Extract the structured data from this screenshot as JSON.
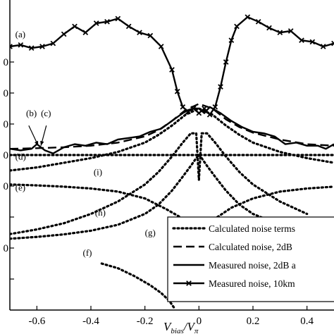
{
  "chart_data": {
    "type": "line",
    "xlabel": {
      "main": "V",
      "sub1": "bias",
      "slash": "/V",
      "sub2": "π"
    },
    "xlim": [
      -0.7,
      0.5
    ],
    "ylim": [
      -1,
      9
    ],
    "xticks": [
      -0.6,
      -0.4,
      -0.2,
      0,
      0.2,
      0.4
    ],
    "xtick_labels": [
      "-0.6",
      "-0.4",
      "-0.2",
      "0",
      "0.2",
      "0.4"
    ],
    "yticks": [
      0,
      1,
      2,
      3,
      4,
      5,
      6,
      7
    ],
    "ytick_labels": [
      "",
      "0",
      "",
      "0",
      "0",
      "0",
      "0",
      "0"
    ],
    "curve_labels": [
      {
        "id": "a",
        "text": "(a)",
        "x": -0.68,
        "y": 7.8
      },
      {
        "id": "b",
        "text": "(b)",
        "x": -0.64,
        "y": 5.25
      },
      {
        "id": "c",
        "text": "(c)",
        "x": -0.585,
        "y": 5.25
      },
      {
        "id": "d",
        "text": "(d)",
        "x": -0.68,
        "y": 3.85
      },
      {
        "id": "e",
        "text": "(e)",
        "x": -0.68,
        "y": 2.85
      },
      {
        "id": "f",
        "text": "(f)",
        "x": -0.43,
        "y": 0.75
      },
      {
        "id": "g",
        "text": "(g)",
        "x": -0.2,
        "y": 1.4
      },
      {
        "id": "h",
        "text": "(h)",
        "x": -0.385,
        "y": 2.05
      },
      {
        "id": "i",
        "text": "(i)",
        "x": -0.39,
        "y": 3.35
      }
    ],
    "pointers": [
      {
        "from": [
          -0.63,
          4.95
        ],
        "to": [
          -0.595,
          4.3
        ]
      },
      {
        "from": [
          -0.565,
          4.95
        ],
        "to": [
          -0.585,
          4.3
        ]
      }
    ],
    "legend": {
      "placement": "bottom-right",
      "entries": [
        {
          "label": "Calculated noise terms",
          "style": "dotted"
        },
        {
          "label": "Calculated noise, 2dB",
          "style": "dashed"
        },
        {
          "label": "Measured noise, 2dB a",
          "style": "solid"
        },
        {
          "label": "Measured noise, 10km",
          "style": "solid-x"
        }
      ]
    },
    "series": [
      {
        "id": "a",
        "style": "solid-x",
        "x": [
          -0.7,
          -0.66,
          -0.62,
          -0.58,
          -0.54,
          -0.5,
          -0.46,
          -0.42,
          -0.38,
          -0.34,
          -0.3,
          -0.26,
          -0.22,
          -0.18,
          -0.14,
          -0.1,
          -0.08,
          -0.06,
          -0.04,
          -0.02,
          0,
          0.02,
          0.04,
          0.06,
          0.08,
          0.1,
          0.12,
          0.14,
          0.18,
          0.22,
          0.26,
          0.3,
          0.34,
          0.38,
          0.42,
          0.46,
          0.5
        ],
        "y": [
          7.5,
          7.55,
          7.45,
          7.5,
          7.6,
          7.9,
          8.15,
          7.95,
          8.25,
          8.3,
          8.4,
          8.15,
          7.95,
          7.85,
          7.5,
          6.75,
          6.05,
          5.55,
          5.4,
          5.5,
          5.35,
          5.5,
          5.3,
          5.55,
          6.2,
          7.0,
          7.7,
          8.15,
          8.45,
          8.3,
          8.1,
          7.95,
          8.0,
          7.7,
          7.65,
          7.5,
          7.6
        ]
      },
      {
        "id": "b",
        "style": "solid",
        "x": [
          -0.7,
          -0.66,
          -0.62,
          -0.6,
          -0.57,
          -0.54,
          -0.5,
          -0.46,
          -0.42,
          -0.38,
          -0.34,
          -0.3,
          -0.26,
          -0.22,
          -0.18,
          -0.14,
          -0.1,
          -0.06,
          -0.04,
          -0.02,
          0,
          0.02,
          0.04,
          0.08,
          0.12,
          0.16,
          0.2,
          0.24,
          0.28,
          0.32,
          0.36,
          0.4,
          0.44,
          0.47,
          0.5
        ],
        "y": [
          4.2,
          4.15,
          4.2,
          4.35,
          4.15,
          4.05,
          4.25,
          4.35,
          4.3,
          4.4,
          4.35,
          4.5,
          4.55,
          4.6,
          4.75,
          4.85,
          5.1,
          5.35,
          5.45,
          5.5,
          5.5,
          5.35,
          5.55,
          5.35,
          5.1,
          4.9,
          4.75,
          4.7,
          4.6,
          4.35,
          4.4,
          4.3,
          4.3,
          4.2,
          4.35
        ]
      },
      {
        "id": "c",
        "style": "dashed",
        "x": [
          -0.7,
          -0.6,
          -0.5,
          -0.4,
          -0.3,
          -0.2,
          -0.15,
          -0.1,
          -0.05,
          0,
          0.05,
          0.1,
          0.15,
          0.2,
          0.3,
          0.4,
          0.5
        ],
        "y": [
          4.2,
          4.22,
          4.25,
          4.3,
          4.4,
          4.6,
          4.8,
          5.1,
          5.45,
          5.65,
          5.5,
          5.15,
          4.9,
          4.72,
          4.5,
          4.35,
          4.3
        ]
      },
      {
        "id": "d",
        "style": "dotted",
        "x": [
          -0.7,
          0.5
        ],
        "y": [
          4.0,
          4.0
        ]
      },
      {
        "id": "i",
        "style": "dotted",
        "x": [
          -0.7,
          -0.6,
          -0.5,
          -0.4,
          -0.3,
          -0.2,
          -0.15,
          -0.1,
          -0.05,
          0,
          0.05,
          0.1,
          0.15,
          0.2,
          0.3,
          0.4,
          0.5
        ],
        "y": [
          3.5,
          3.6,
          3.75,
          3.9,
          4.1,
          4.4,
          4.65,
          4.95,
          5.3,
          5.5,
          5.3,
          4.95,
          4.65,
          4.4,
          4.1,
          3.9,
          3.75
        ]
      },
      {
        "id": "e",
        "style": "dotted",
        "x": [
          -0.7,
          -0.6,
          -0.5,
          -0.4,
          -0.3,
          -0.2,
          -0.12,
          -0.06,
          -0.03,
          -0.01,
          0,
          0.01,
          0.03,
          0.06,
          0.12,
          0.2,
          0.3,
          0.4,
          0.5
        ],
        "y": [
          3.05,
          3.02,
          2.98,
          2.92,
          2.82,
          2.6,
          2.25,
          1.95,
          1.85,
          1.75,
          1.65,
          1.75,
          1.85,
          1.95,
          2.3,
          2.6,
          2.82,
          2.92,
          2.98
        ]
      },
      {
        "id": "h",
        "style": "dotted",
        "x": [
          -0.7,
          -0.6,
          -0.5,
          -0.4,
          -0.3,
          -0.2,
          -0.15,
          -0.1,
          -0.06,
          -0.03,
          -0.01,
          0,
          0.01,
          0.03,
          0.06,
          0.1,
          0.15,
          0.2,
          0.3,
          0.4
        ],
        "y": [
          1.45,
          1.6,
          1.8,
          2.1,
          2.5,
          3.05,
          3.45,
          3.95,
          4.4,
          4.7,
          4.7,
          3.2,
          4.7,
          4.7,
          4.4,
          3.95,
          3.45,
          3.05,
          2.5,
          2.1
        ]
      },
      {
        "id": "g",
        "style": "dotted",
        "x": [
          -0.7,
          -0.6,
          -0.5,
          -0.4,
          -0.3,
          -0.2,
          -0.15,
          -0.1,
          -0.06,
          -0.03,
          -0.01,
          0
        ],
        "y": [
          1.3,
          1.36,
          1.44,
          1.56,
          1.75,
          2.1,
          2.4,
          2.85,
          3.3,
          3.65,
          3.9,
          4.0
        ]
      },
      {
        "id": "g2",
        "style": "dotted",
        "x": [
          0,
          0.01,
          0.03,
          0.06,
          0.1,
          0.15,
          0.2,
          0.3,
          0.4,
          0.5
        ],
        "y": [
          4.0,
          3.9,
          3.65,
          3.3,
          2.85,
          2.4,
          2.1,
          1.75,
          1.56,
          1.44
        ]
      },
      {
        "id": "f",
        "style": "dotted",
        "x": [
          -0.36,
          -0.3,
          -0.24,
          -0.18,
          -0.14,
          -0.11,
          -0.09
        ],
        "y": [
          0.5,
          0.35,
          0.1,
          -0.2,
          -0.45,
          -0.7,
          -0.95
        ]
      }
    ]
  }
}
